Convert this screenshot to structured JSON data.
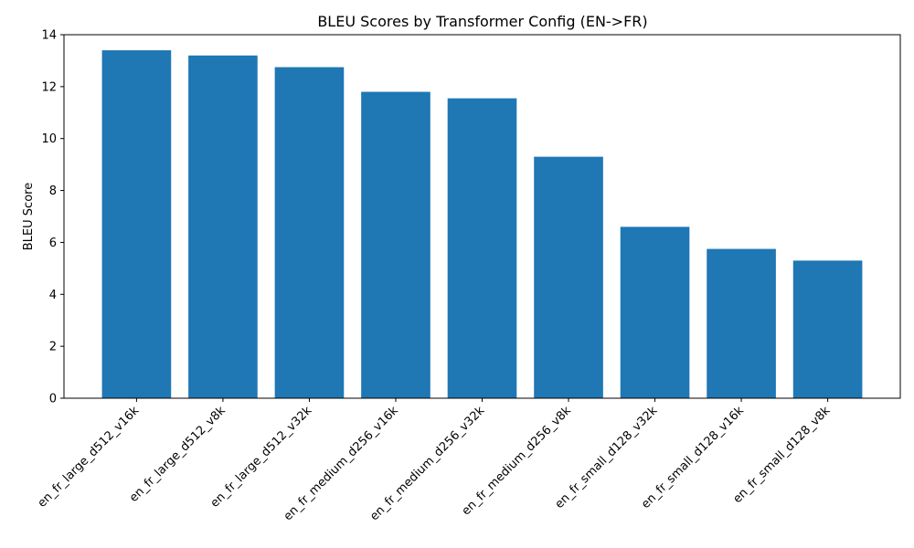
{
  "chart_data": {
    "type": "bar",
    "title": "BLEU Scores by Transformer Config (EN->FR)",
    "xlabel": "",
    "ylabel": "BLEU Score",
    "ylim": [
      0,
      14
    ],
    "yticks": [
      0,
      2,
      4,
      6,
      8,
      10,
      12,
      14
    ],
    "grid": false,
    "categories": [
      "en_fr_large_d512_v16k",
      "en_fr_large_d512_v8k",
      "en_fr_large_d512_v32k",
      "en_fr_medium_d256_v16k",
      "en_fr_medium_d256_v32k",
      "en_fr_medium_d256_v8k",
      "en_fr_small_d128_v32k",
      "en_fr_small_d128_v16k",
      "en_fr_small_d128_v8k"
    ],
    "values": [
      13.4,
      13.2,
      12.75,
      11.8,
      11.55,
      9.3,
      6.6,
      5.75,
      5.3
    ],
    "bar_color": "#1f77b4"
  }
}
